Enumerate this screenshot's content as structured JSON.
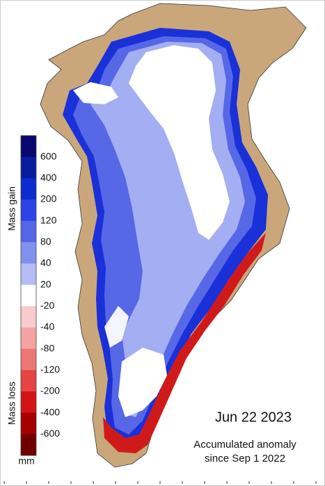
{
  "legend": {
    "gain_label": "Mass gain",
    "loss_label": "Mass loss",
    "unit": "mm",
    "ticks": [
      600,
      400,
      200,
      120,
      80,
      40,
      20,
      -20,
      -40,
      -80,
      -120,
      -200,
      -400,
      -600
    ],
    "colors": [
      "#08086e",
      "#0a1c9e",
      "#0c2ccf",
      "#2c44e4",
      "#5566e6",
      "#8391ee",
      "#b4bcf5",
      "#ffffff",
      "#f8cccc",
      "#f3a3a3",
      "#ec7777",
      "#e54444",
      "#d41414",
      "#a60000",
      "#700000"
    ]
  },
  "date": "Jun 22 2023",
  "caption": [
    "Accumulated anomaly",
    "since Sep 1 2022"
  ]
}
